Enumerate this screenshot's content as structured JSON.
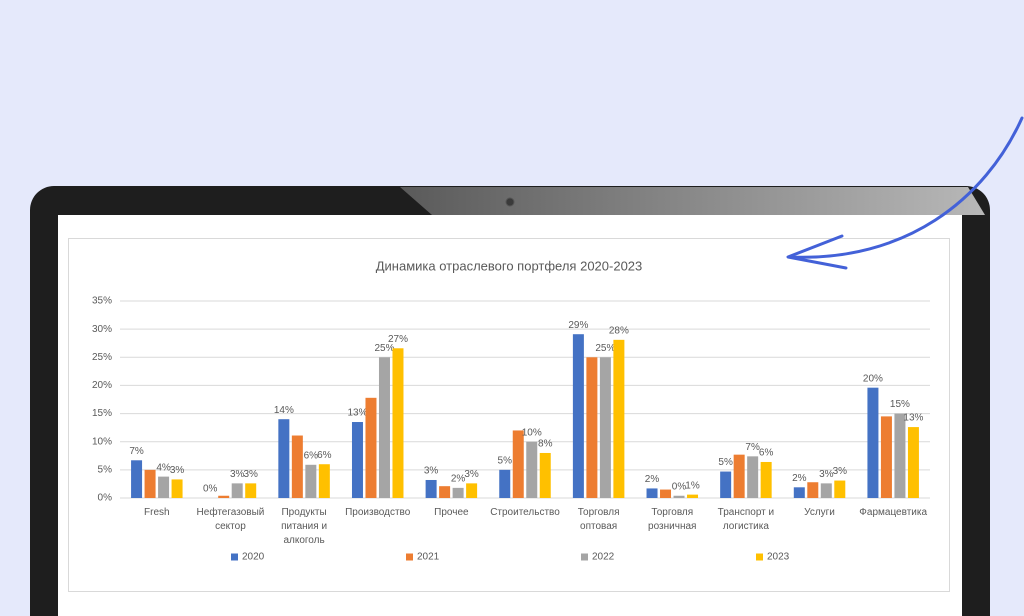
{
  "chart_data": {
    "type": "bar",
    "title": "Динамика отраслевого портфеля 2020-2023",
    "categories": [
      "Fresh",
      "Нефтегазовый сектор",
      "Продукты питания и алкоголь",
      "Производство",
      "Прочее",
      "Строительство",
      "Торговля оптовая",
      "Торговля розничная",
      "Транспорт и логистика",
      "Услуги",
      "Фармацевтика"
    ],
    "series": [
      {
        "name": "2020",
        "color": "#4472c4",
        "values": [
          6.7,
          0,
          14.0,
          13.5,
          3.2,
          5.0,
          29.1,
          1.7,
          4.7,
          1.9,
          19.6
        ],
        "value_labels": [
          "7%",
          "0%",
          "14%",
          "13%",
          "3%",
          "5%",
          "29%",
          "2%",
          "5%",
          "2%",
          "20%"
        ]
      },
      {
        "name": "2021",
        "color": "#ed7d31",
        "values": [
          5.0,
          0.4,
          11.1,
          17.8,
          2.1,
          12.0,
          25.0,
          1.5,
          7.7,
          2.8,
          14.5
        ],
        "value_labels": [
          null,
          null,
          null,
          null,
          null,
          null,
          null,
          null,
          null,
          null,
          null
        ]
      },
      {
        "name": "2022",
        "color": "#a5a5a5",
        "values": [
          3.8,
          2.6,
          5.9,
          25.0,
          1.8,
          10.0,
          25.0,
          0.4,
          7.4,
          2.6,
          15.0
        ],
        "value_labels": [
          "4%",
          "3%",
          "6%",
          "25%",
          "2%",
          "10%",
          "25%",
          "0%",
          "7%",
          "3%",
          "15%"
        ]
      },
      {
        "name": "2023",
        "color": "#ffc000",
        "values": [
          3.3,
          2.6,
          6.0,
          26.6,
          2.6,
          8.0,
          28.1,
          0.6,
          6.4,
          3.1,
          12.6
        ],
        "value_labels": [
          "3%",
          "3%",
          "6%",
          "27%",
          "3%",
          "8%",
          "28%",
          "1%",
          "6%",
          "3%",
          "13%"
        ]
      }
    ],
    "ylim": [
      0,
      35
    ],
    "yticks": [
      {
        "value": 0,
        "label": "0%"
      },
      {
        "value": 5,
        "label": "5%"
      },
      {
        "value": 10,
        "label": "10%"
      },
      {
        "value": 15,
        "label": "15%"
      },
      {
        "value": 20,
        "label": "20%"
      },
      {
        "value": 25,
        "label": "25%"
      },
      {
        "value": 30,
        "label": "30%"
      },
      {
        "value": 35,
        "label": "35%"
      }
    ],
    "grid": true,
    "legend": "bottom"
  }
}
